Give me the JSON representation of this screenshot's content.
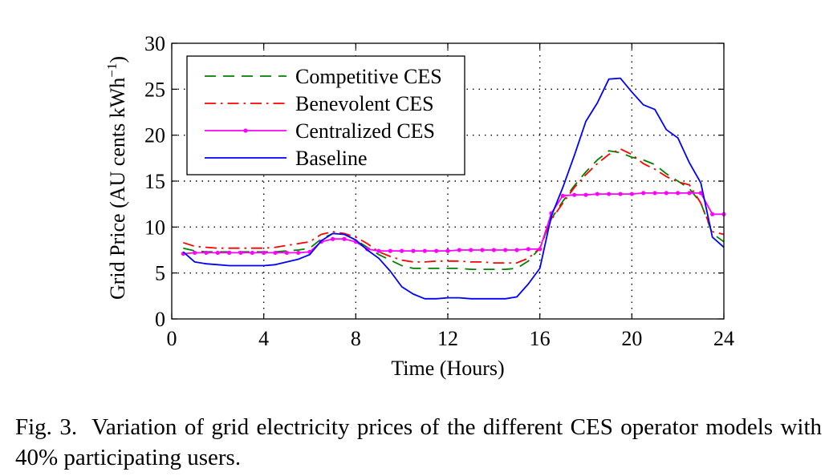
{
  "chart_data": {
    "type": "line",
    "xlabel": "Time (Hours)",
    "ylabel_main": "Grid Price (AU cents kWh",
    "ylabel_sup": "−1",
    "ylabel_close": ")",
    "xlim": [
      0,
      24
    ],
    "ylim": [
      0,
      30
    ],
    "xticks": [
      0,
      4,
      8,
      12,
      16,
      20,
      24
    ],
    "yticks": [
      0,
      5,
      10,
      15,
      20,
      25,
      30
    ],
    "grid": true,
    "legend_position": "top-left",
    "x": [
      0.5,
      1,
      1.5,
      2,
      2.5,
      3,
      3.5,
      4,
      4.5,
      5,
      5.5,
      6,
      6.5,
      7,
      7.5,
      8,
      8.5,
      9,
      9.5,
      10,
      10.5,
      11,
      11.5,
      12,
      12.5,
      13,
      13.5,
      14,
      14.5,
      15,
      15.5,
      16,
      16.5,
      17,
      17.5,
      18,
      18.5,
      19,
      19.5,
      20,
      20.5,
      21,
      21.5,
      22,
      22.5,
      23,
      23.5,
      24
    ],
    "series": [
      {
        "name": "Competitive CES",
        "color": "#008000",
        "dash": "dashed",
        "values": [
          7.7,
          7.4,
          7.3,
          7.3,
          7.3,
          7.3,
          7.3,
          7.3,
          7.3,
          7.4,
          7.5,
          7.7,
          8.7,
          9.3,
          9.2,
          8.6,
          7.8,
          7.0,
          6.4,
          5.8,
          5.5,
          5.5,
          5.5,
          5.5,
          5.5,
          5.4,
          5.4,
          5.4,
          5.4,
          5.5,
          6.3,
          7.7,
          10.9,
          12.8,
          14.5,
          16.0,
          17.3,
          18.3,
          18.1,
          17.6,
          17.3,
          16.8,
          15.8,
          15.0,
          14.2,
          12.6,
          9.3,
          8.4
        ]
      },
      {
        "name": "Benevolent CES",
        "color": "#ff0000",
        "dash": "dashdot",
        "values": [
          8.3,
          7.9,
          7.8,
          7.7,
          7.7,
          7.7,
          7.7,
          7.7,
          7.8,
          8.0,
          8.2,
          8.4,
          9.2,
          9.5,
          9.3,
          8.9,
          8.2,
          7.3,
          6.8,
          6.4,
          6.2,
          6.2,
          6.3,
          6.3,
          6.3,
          6.2,
          6.2,
          6.1,
          6.1,
          6.1,
          6.6,
          7.7,
          10.8,
          12.6,
          14.3,
          15.7,
          16.9,
          17.9,
          18.5,
          17.9,
          16.9,
          16.3,
          15.5,
          14.9,
          14.6,
          12.6,
          9.5,
          9.2
        ]
      },
      {
        "name": "Centralized CES",
        "color": "#ff00ff",
        "dash": "solid-dot",
        "values": [
          7.1,
          7.2,
          7.2,
          7.2,
          7.2,
          7.2,
          7.2,
          7.2,
          7.2,
          7.2,
          7.2,
          7.3,
          8.4,
          8.7,
          8.7,
          8.4,
          7.6,
          7.4,
          7.4,
          7.4,
          7.4,
          7.4,
          7.4,
          7.4,
          7.5,
          7.5,
          7.5,
          7.5,
          7.5,
          7.5,
          7.6,
          7.6,
          11.5,
          13.4,
          13.5,
          13.5,
          13.6,
          13.6,
          13.6,
          13.6,
          13.7,
          13.7,
          13.7,
          13.7,
          13.7,
          13.7,
          11.4,
          11.4
        ]
      },
      {
        "name": "Baseline",
        "color": "#0000ff",
        "dash": "solid",
        "values": [
          7.3,
          6.2,
          6.0,
          5.9,
          5.8,
          5.8,
          5.8,
          5.8,
          5.9,
          6.2,
          6.5,
          7.0,
          8.5,
          9.3,
          9.2,
          8.6,
          7.5,
          6.6,
          5.2,
          3.5,
          2.7,
          2.2,
          2.2,
          2.3,
          2.3,
          2.2,
          2.2,
          2.2,
          2.2,
          2.4,
          3.8,
          5.5,
          11.2,
          14.3,
          17.8,
          21.5,
          23.5,
          26.1,
          26.2,
          24.7,
          23.3,
          22.8,
          20.6,
          19.7,
          17.0,
          14.8,
          8.9,
          7.8
        ]
      }
    ]
  },
  "caption": {
    "label": "Fig. 3.",
    "text": "Variation of grid electricity prices of the different CES operator models with 40% participating users."
  }
}
